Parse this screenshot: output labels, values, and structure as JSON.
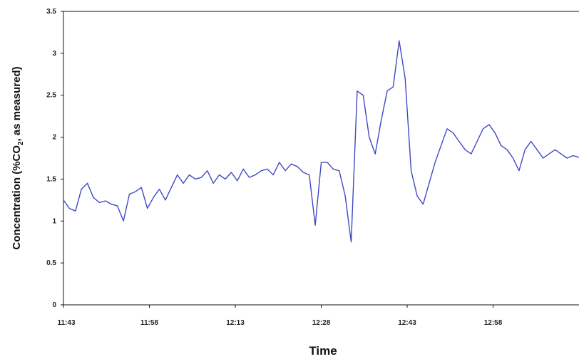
{
  "chart_data": {
    "type": "line",
    "title": "",
    "xlabel": "Time",
    "ylabel": "Concentration (%CO₂, as measured)",
    "ylabel_parts": {
      "before": "Concentration (%CO",
      "sub": "2",
      "after": ", as measured)"
    },
    "x_tick_labels": [
      "11:43",
      "11:58",
      "12:13",
      "12:28",
      "12:43",
      "12:58"
    ],
    "y_tick_labels": [
      "0",
      "0.5",
      "1",
      "1.5",
      "2",
      "2.5",
      "3",
      "3.5"
    ],
    "ylim": [
      0,
      3.5
    ],
    "xlim": [
      0,
      86
    ],
    "grid": false,
    "legend": "none",
    "series": [
      {
        "color": "#3f49c4",
        "x": [
          0,
          1,
          2,
          3,
          4,
          5,
          6,
          7,
          8,
          9,
          10,
          11,
          12,
          13,
          14,
          15,
          16,
          17,
          18,
          19,
          20,
          21,
          22,
          23,
          24,
          25,
          26,
          27,
          28,
          29,
          30,
          31,
          32,
          33,
          34,
          35,
          36,
          37,
          38,
          39,
          40,
          41,
          42,
          43,
          44,
          45,
          46,
          47,
          48,
          49,
          50,
          51,
          52,
          53,
          54,
          55,
          56,
          57,
          58,
          59,
          60,
          61,
          62,
          63,
          64,
          65,
          66,
          67,
          68,
          69,
          70,
          71,
          72,
          73,
          74,
          75,
          76,
          77,
          78,
          79,
          80,
          81,
          82,
          83,
          84,
          85,
          86
        ],
        "y": [
          1.25,
          1.15,
          1.12,
          1.38,
          1.45,
          1.28,
          1.22,
          1.24,
          1.2,
          1.18,
          1.0,
          1.32,
          1.35,
          1.4,
          1.15,
          1.28,
          1.38,
          1.25,
          1.4,
          1.55,
          1.45,
          1.55,
          1.5,
          1.52,
          1.6,
          1.45,
          1.55,
          1.5,
          1.58,
          1.48,
          1.62,
          1.52,
          1.55,
          1.6,
          1.62,
          1.55,
          1.7,
          1.6,
          1.68,
          1.65,
          1.58,
          1.55,
          0.95,
          1.7,
          1.7,
          1.62,
          1.6,
          1.3,
          0.75,
          2.55,
          2.5,
          2.0,
          1.8,
          2.2,
          2.55,
          2.6,
          3.15,
          2.7,
          1.6,
          1.3,
          1.2,
          1.45,
          1.7,
          1.9,
          2.1,
          2.05,
          1.95,
          1.85,
          1.8,
          1.95,
          2.1,
          2.15,
          2.05,
          1.9,
          1.85,
          1.75,
          1.6,
          1.85,
          1.95,
          1.85,
          1.75,
          1.8,
          1.85,
          1.8,
          1.75,
          1.78,
          1.76
        ]
      }
    ]
  }
}
